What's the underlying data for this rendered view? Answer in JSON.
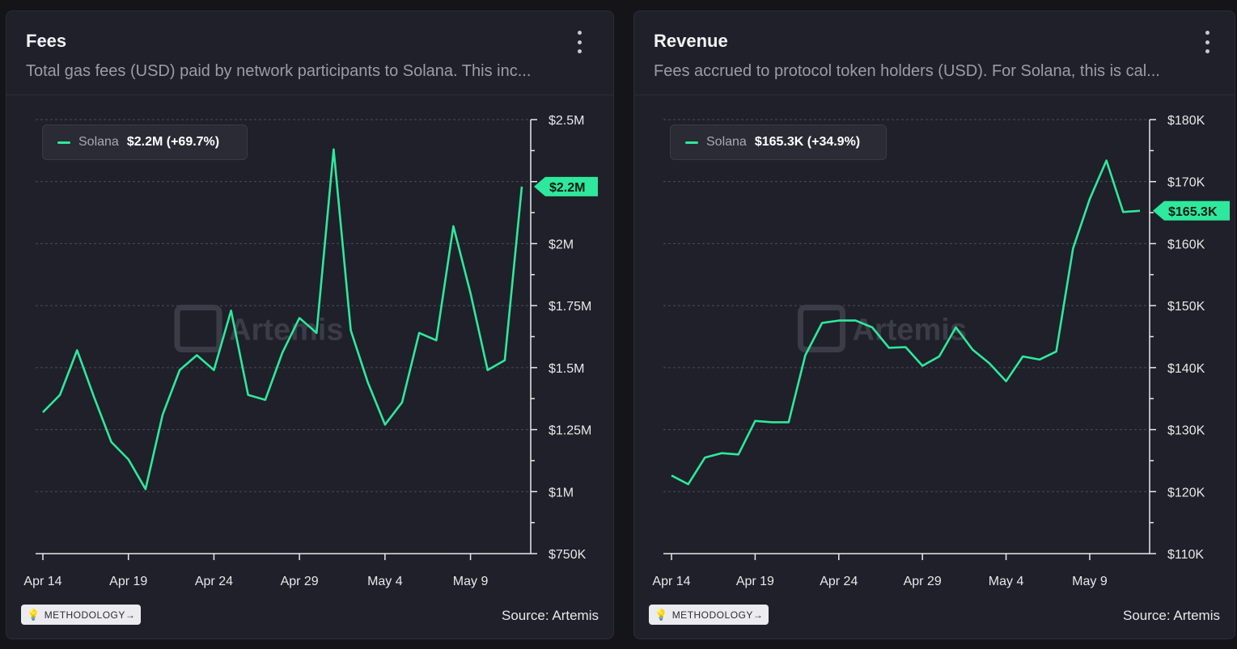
{
  "colors": {
    "series": "#2ee89c",
    "background": "#1f2029",
    "grid": "#4a4b57",
    "axis": "#e8e8ec",
    "watermark": "#3b3c47"
  },
  "watermark_text": "Artemis",
  "cards": [
    {
      "title": "Fees",
      "description": "Total gas fees (USD) paid by network participants to Solana. This inc...",
      "legend": {
        "name": "Solana",
        "value": "$2.2M (+69.7%)"
      },
      "methodology_label": "METHODOLOGY→",
      "source": "Source: Artemis"
    },
    {
      "title": "Revenue",
      "description": "Fees accrued to protocol token holders (USD). For Solana, this is cal...",
      "legend": {
        "name": "Solana",
        "value": "$165.3K (+34.9%)"
      },
      "methodology_label": "METHODOLOGY→",
      "source": "Source: Artemis"
    }
  ],
  "chart_data": [
    {
      "type": "line",
      "title": "Fees",
      "x_start": "2024-04-14",
      "x_end": "2024-05-13",
      "x_tick_labels": [
        "Apr 14",
        "Apr 19",
        "Apr 24",
        "Apr 29",
        "May 4",
        "May 9"
      ],
      "x_tick_dates": [
        "2024-04-14",
        "2024-04-19",
        "2024-04-24",
        "2024-04-29",
        "2024-05-04",
        "2024-05-09"
      ],
      "ylim": [
        750000,
        2500000
      ],
      "y_ticks": [
        750000,
        1000000,
        1250000,
        1500000,
        1750000,
        2000000,
        2250000,
        2500000
      ],
      "y_tick_labels": [
        "$750K",
        "$1M",
        "$1.25M",
        "$1.5M",
        "$1.75M",
        "$2M",
        "",
        "$2.5M"
      ],
      "grid": true,
      "legend_position": "top-left",
      "last_value_label": "$2.2M",
      "series": [
        {
          "name": "Solana",
          "values": [
            1320000,
            1390000,
            1570000,
            1380000,
            1200000,
            1130000,
            1010000,
            1310000,
            1490000,
            1550000,
            1490000,
            1730000,
            1390000,
            1370000,
            1560000,
            1700000,
            1640000,
            2380000,
            1650000,
            1440000,
            1270000,
            1360000,
            1640000,
            1610000,
            2070000,
            1800000,
            1490000,
            1530000,
            2230000
          ]
        }
      ]
    },
    {
      "type": "line",
      "title": "Revenue",
      "x_start": "2024-04-14",
      "x_end": "2024-05-13",
      "x_tick_labels": [
        "Apr 14",
        "Apr 19",
        "Apr 24",
        "Apr 29",
        "May 4",
        "May 9"
      ],
      "x_tick_dates": [
        "2024-04-14",
        "2024-04-19",
        "2024-04-24",
        "2024-04-29",
        "2024-05-04",
        "2024-05-09"
      ],
      "ylim": [
        110000,
        180000
      ],
      "y_ticks": [
        110000,
        120000,
        130000,
        140000,
        150000,
        160000,
        170000,
        180000
      ],
      "y_tick_labels": [
        "$110K",
        "$120K",
        "$130K",
        "$140K",
        "$150K",
        "$160K",
        "$170K",
        "$180K"
      ],
      "grid": true,
      "legend_position": "top-left",
      "last_value_label": "$165.3K",
      "series": [
        {
          "name": "Solana",
          "values": [
            122600,
            121200,
            125500,
            126200,
            126000,
            131400,
            131200,
            131200,
            142000,
            147200,
            147600,
            147600,
            146500,
            143200,
            143300,
            140300,
            141800,
            146500,
            142900,
            140700,
            137800,
            141800,
            141300,
            142600,
            159200,
            167200,
            173400,
            165100,
            165300
          ]
        }
      ]
    }
  ]
}
